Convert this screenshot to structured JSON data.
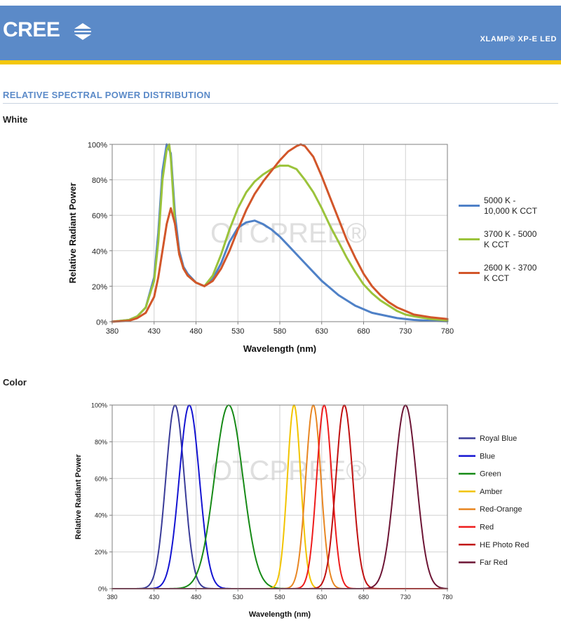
{
  "header": {
    "logo_text": "CREE",
    "product": "XLAMP® XP-E LED",
    "colors": {
      "bar": "#5b8ac8",
      "stripe": "#f3c70d"
    },
    "logo_icon": "double-chevron-icon"
  },
  "section_title": "RELATIVE SPECTRAL POWER DISTRIBUTION",
  "watermark": "OTCPREE®",
  "chart_data": [
    {
      "type": "line",
      "subtitle": "White",
      "xlabel": "Wavelength (nm)",
      "ylabel": "Relative Radiant Power",
      "xlim": [
        380,
        780
      ],
      "ylim": [
        0,
        100
      ],
      "x_ticks": [
        380,
        430,
        480,
        530,
        580,
        630,
        680,
        730,
        780
      ],
      "y_ticks": [
        0,
        20,
        40,
        60,
        80,
        100
      ],
      "y_tick_labels": [
        "0%",
        "20%",
        "40%",
        "60%",
        "80%",
        "100%"
      ],
      "grid": true,
      "legend_placement": "right",
      "series": [
        {
          "name": "5000 K - 10,000 K CCT",
          "color": "#4f81c7",
          "x": [
            380,
            400,
            410,
            420,
            430,
            435,
            440,
            445,
            450,
            455,
            460,
            465,
            470,
            480,
            490,
            500,
            510,
            520,
            530,
            540,
            550,
            560,
            570,
            580,
            590,
            600,
            610,
            620,
            630,
            640,
            650,
            660,
            670,
            680,
            690,
            700,
            710,
            720,
            730,
            740,
            760,
            780
          ],
          "y": [
            0,
            1,
            3,
            8,
            25,
            50,
            85,
            100,
            95,
            60,
            40,
            31,
            27,
            22,
            20,
            24,
            33,
            45,
            53,
            56,
            57,
            55,
            52,
            48,
            43,
            38,
            33,
            28,
            23,
            19,
            15,
            12,
            9,
            7,
            5,
            4,
            3,
            2,
            1.5,
            1,
            0.5,
            0.2
          ]
        },
        {
          "name": "3700 K - 5000 K CCT",
          "color": "#9bc33b",
          "x": [
            380,
            400,
            410,
            420,
            430,
            435,
            440,
            445,
            448,
            450,
            455,
            460,
            465,
            470,
            480,
            490,
            500,
            510,
            520,
            530,
            540,
            550,
            560,
            570,
            580,
            590,
            600,
            610,
            620,
            630,
            640,
            650,
            660,
            670,
            680,
            690,
            700,
            710,
            720,
            730,
            740,
            760,
            780
          ],
          "y": [
            0,
            1,
            3,
            8,
            23,
            45,
            80,
            97,
            100,
            92,
            55,
            38,
            30,
            26,
            22,
            20,
            26,
            38,
            52,
            64,
            73,
            79,
            83,
            86,
            88,
            88,
            86,
            80,
            73,
            64,
            54,
            45,
            36,
            28,
            21,
            16,
            12,
            9,
            6,
            4,
            3,
            1.5,
            0.7
          ]
        },
        {
          "name": "2600 K - 3700 K CCT",
          "color": "#d2562a",
          "x": [
            380,
            400,
            410,
            420,
            430,
            435,
            440,
            445,
            450,
            455,
            460,
            465,
            470,
            480,
            490,
            500,
            510,
            520,
            530,
            540,
            550,
            560,
            570,
            580,
            590,
            600,
            605,
            610,
            620,
            630,
            640,
            650,
            660,
            670,
            680,
            690,
            700,
            710,
            720,
            730,
            740,
            760,
            780
          ],
          "y": [
            0,
            0.5,
            2,
            5,
            14,
            25,
            40,
            55,
            64,
            55,
            38,
            30,
            26,
            22,
            20,
            23,
            30,
            40,
            52,
            63,
            72,
            79,
            85,
            91,
            96,
            99,
            100,
            99,
            93,
            82,
            70,
            58,
            46,
            36,
            27,
            20,
            15,
            11,
            8,
            6,
            4,
            2.5,
            1.5
          ]
        }
      ]
    },
    {
      "type": "line",
      "subtitle": "Color",
      "xlabel": "Wavelength (nm)",
      "ylabel": "Relative Radiant Power",
      "xlim": [
        380,
        780
      ],
      "ylim": [
        0,
        100
      ],
      "x_ticks": [
        380,
        430,
        480,
        530,
        580,
        630,
        680,
        730,
        780
      ],
      "y_ticks": [
        0,
        20,
        40,
        60,
        80,
        100
      ],
      "y_tick_labels": [
        "0%",
        "20%",
        "40%",
        "60%",
        "80%",
        "100%"
      ],
      "grid": true,
      "legend_placement": "right",
      "series": [
        {
          "name": "Royal Blue",
          "color": "#3a3c99",
          "peak": 455,
          "width": 11
        },
        {
          "name": "Blue",
          "color": "#1414d2",
          "peak": 472,
          "width": 12
        },
        {
          "name": "Green",
          "color": "#168a16",
          "peak": 519,
          "width": 17
        },
        {
          "name": "Amber",
          "color": "#f2c400",
          "peak": 597,
          "width": 8
        },
        {
          "name": "Red-Orange",
          "color": "#e88622",
          "peak": 620,
          "width": 9
        },
        {
          "name": "Red",
          "color": "#ee1c1c",
          "peak": 633,
          "width": 9
        },
        {
          "name": "HE Photo Red",
          "color": "#c01010",
          "peak": 657,
          "width": 10
        },
        {
          "name": "Far Red",
          "color": "#6d1535",
          "peak": 730,
          "width": 13
        }
      ]
    }
  ]
}
